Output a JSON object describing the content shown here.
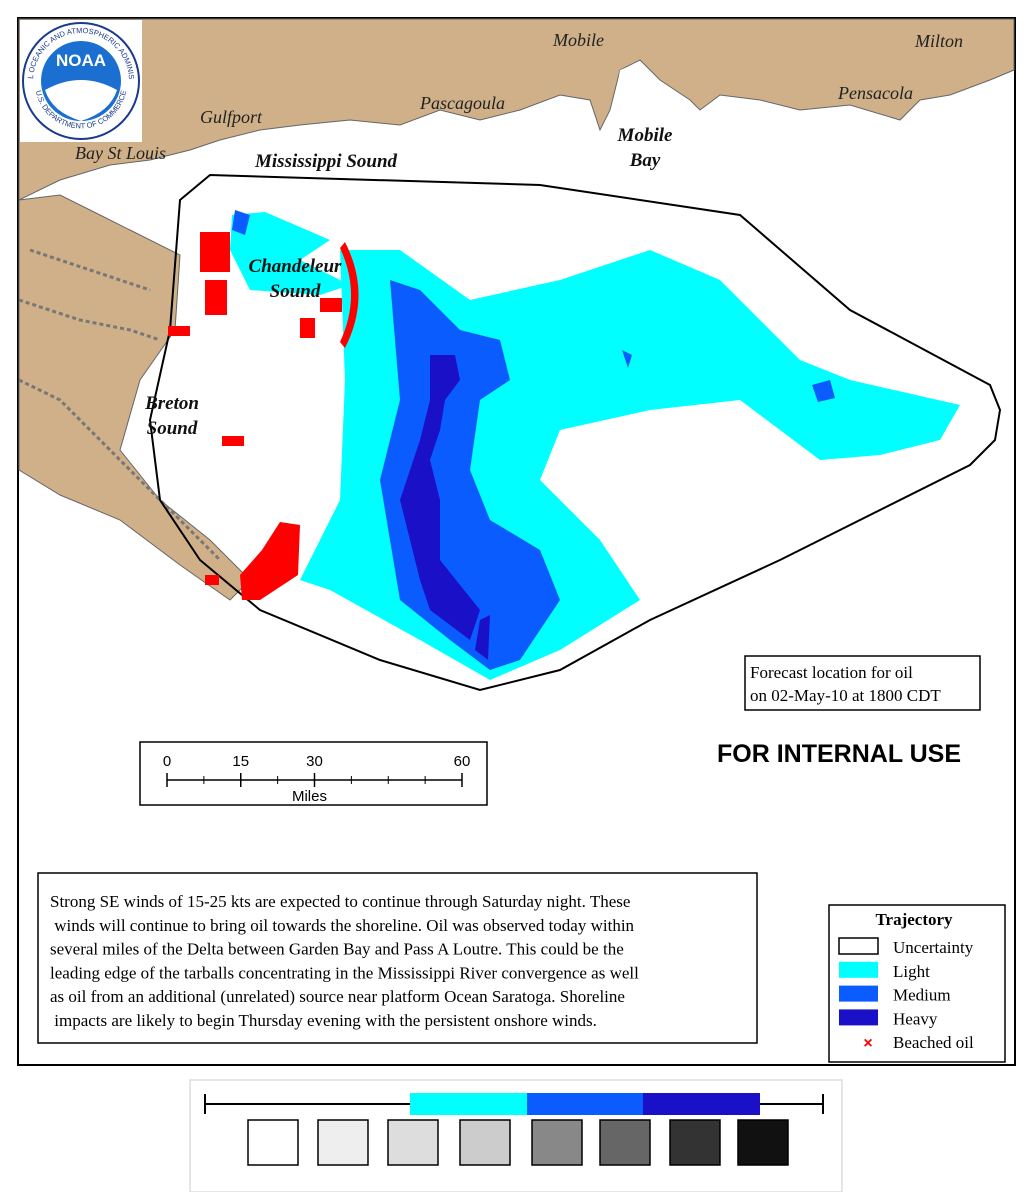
{
  "logo": {
    "label": "NOAA",
    "ring_top": "NATIONAL OCEANIC AND ATMOSPHERIC ADMINISTRATION",
    "ring_bottom": "U.S. DEPARTMENT OF COMMERCE"
  },
  "places": [
    {
      "lines": [
        "Mobile"
      ]
    },
    {
      "lines": [
        "Milton"
      ]
    },
    {
      "lines": [
        "Pensacola"
      ]
    },
    {
      "lines": [
        "Pascagoula"
      ]
    },
    {
      "lines": [
        "Gulfport"
      ]
    },
    {
      "lines": [
        "Bay St Louis"
      ]
    },
    {
      "lines": [
        "Mississippi Sound"
      ]
    },
    {
      "lines": [
        "Mobile",
        "Bay"
      ]
    },
    {
      "lines": [
        "Chandeleur",
        "Sound"
      ]
    },
    {
      "lines": [
        "Breton",
        "Sound"
      ]
    }
  ],
  "forecast": [
    "Forecast location for oil",
    "on 02-May-10 at 1800 CDT"
  ],
  "stamp": "FOR INTERNAL USE",
  "scale": {
    "ticks": [
      0,
      15,
      30,
      60
    ],
    "unit": "Miles"
  },
  "note": [
    "Strong SE winds of 15-25 kts are expected to continue through Saturday night. These",
    " winds will continue to bring oil towards the shoreline. Oil was observed today within",
    "several miles of the Delta between Garden Bay and Pass A Loutre. This could be the",
    "leading edge of the tarballs concentrating in the Mississippi River convergence as well",
    "as oil from an additional (unrelated) source near platform Ocean Saratoga. Shoreline",
    " impacts are likely to begin Thursday evening with the persistent onshore winds."
  ],
  "legend": {
    "title": "Trajectory",
    "items": [
      {
        "label": "Uncertainty",
        "color": "#ffffff"
      },
      {
        "label": "Light",
        "color": "#00ffff"
      },
      {
        "label": "Medium",
        "color": "#0a5cff"
      },
      {
        "label": "Heavy",
        "color": "#1a10c8"
      },
      {
        "label": "Beached oil",
        "color": "#ff0000"
      }
    ]
  }
}
